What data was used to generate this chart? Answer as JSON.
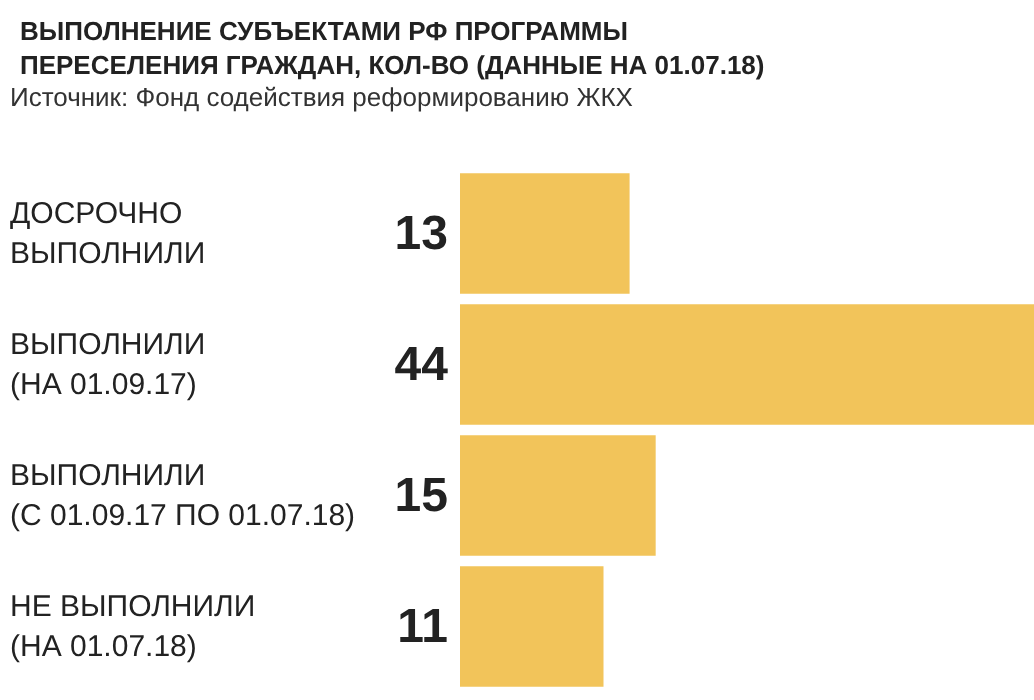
{
  "chart_data": {
    "type": "bar",
    "orientation": "horizontal",
    "title": "ВЫПОЛНЕНИЕ СУБЪЕКТАМИ РФ ПРОГРАММЫ ПЕРЕСЕЛЕНИЯ ГРАЖДАН, КОЛ-ВО (ДАННЫЕ НА 01.07.18)",
    "annotations": [
      "Источник: Фонд содействия реформированию ЖКХ"
    ],
    "categories": [
      "ДОСРОЧНО\nВЫПОЛНИЛИ",
      "ВЫПОЛНИЛИ\n(НА 01.09.17)",
      "ВЫПОЛНИЛИ\n(С 01.09.17 ПО 01.07.18)",
      "НЕ ВЫПОЛНИЛИ\n(НА 01.07.18)"
    ],
    "values": [
      13,
      44,
      15,
      11
    ],
    "color": "#f2c45a",
    "data_labels": true,
    "grid": false
  }
}
